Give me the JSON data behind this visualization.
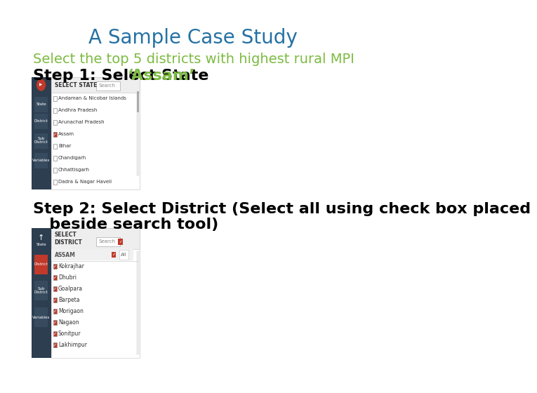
{
  "title": "A Sample Case Study",
  "title_color": "#2471a3",
  "title_fontsize": 20,
  "subtitle": "Select the top 5 districts with highest rural MPI",
  "subtitle_color": "#7dbb42",
  "subtitle_fontsize": 14,
  "step1_prefix": "Step 1: Select State ",
  "step1_highlight": "‘Assam’",
  "step1_color": "#000000",
  "step1_highlight_color": "#7dbb42",
  "step1_fontsize": 16,
  "step2_line1": "Step 2: Select District (Select all using check box placed",
  "step2_line2": "   beside search tool)",
  "step2_color": "#000000",
  "step2_fontsize": 16,
  "bg_color": "#ffffff",
  "sidebar_color": "#2c3e50",
  "panel_border": "#cccccc",
  "select_state_label": "SELECT STATE",
  "search_label": "Search",
  "state_items": [
    "Andaman & Nicobar Islands",
    "Andhra Pradesh",
    "Arunachal Pradesh",
    "Assam",
    "Bihar",
    "Chandigarh",
    "Chhattisgarh",
    "Dadra & Nagar Haveli"
  ],
  "state_checked": [
    false,
    false,
    false,
    true,
    false,
    false,
    false,
    false
  ],
  "select_district_label": "SELECT\nDISTRICT",
  "assam_label": "ASSAM",
  "district_items": [
    "Kokrajhar",
    "Dhubri",
    "Goalpara",
    "Barpeta",
    "Morigaon",
    "Nagaon",
    "Sonitpur",
    "Lakhimpur"
  ],
  "district_checked": [
    true,
    true,
    true,
    true,
    true,
    true,
    true,
    true
  ],
  "red_color": "#c0392b"
}
